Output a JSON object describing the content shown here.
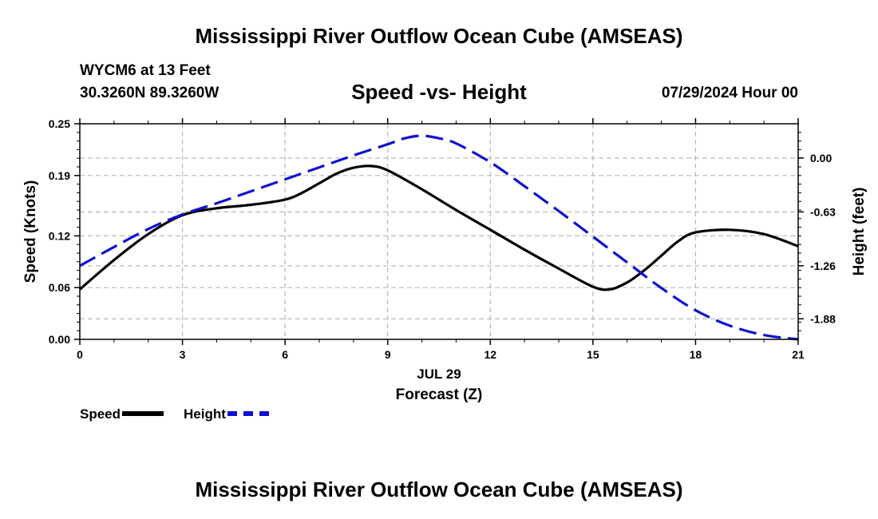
{
  "title_top": "Mississippi River Outflow Ocean Cube (AMSEAS)",
  "title_bottom": "Mississippi River Outflow Ocean Cube (AMSEAS)",
  "station": "WYCM6 at 13 Feet",
  "coords": "30.3260N  89.3260W",
  "subtitle": "Speed -vs- Height",
  "datetime": "07/29/2024 Hour 00",
  "colors": {
    "speed": "#000000",
    "height": "#1010d0",
    "grid": "#b8b8b8"
  },
  "legend": {
    "speed_label": "Speed",
    "height_label": "Height"
  },
  "chart_data": {
    "type": "line",
    "xlabel": "Forecast (Z)",
    "xlabel_date": "JUL 29",
    "ylabel_left": "Speed (Knots)",
    "ylabel_right": "Height (feet)",
    "xlim": [
      0,
      21
    ],
    "ylim_left": [
      0.0,
      0.25
    ],
    "ylim_right": [
      -2.12,
      0.4
    ],
    "x_ticks": [
      0,
      3,
      6,
      9,
      12,
      15,
      18,
      21
    ],
    "x_tick_labels": [
      "0",
      "3",
      "6",
      "9",
      "12",
      "15",
      "18",
      "21"
    ],
    "y_left_ticks": [
      0.0,
      0.06,
      0.12,
      0.19,
      0.25
    ],
    "y_left_tick_labels": [
      "0.00",
      "0.06",
      "0.12",
      "0.19",
      "0.25"
    ],
    "y_right_ticks": [
      0.0,
      -0.63,
      -1.26,
      -1.88
    ],
    "y_right_tick_labels": [
      "0.00",
      "-0.63",
      "-1.26",
      "-1.88"
    ],
    "series": [
      {
        "name": "Speed",
        "axis": "left",
        "style": "solid",
        "x": [
          0,
          1,
          2,
          3,
          4,
          5,
          6,
          6.5,
          7,
          7.5,
          8,
          8.5,
          9,
          10,
          11,
          12,
          13,
          14,
          15,
          15.5,
          16,
          16.5,
          17,
          17.5,
          18,
          19,
          20,
          21
        ],
        "values": [
          0.058,
          0.092,
          0.122,
          0.144,
          0.152,
          0.156,
          0.162,
          0.17,
          0.181,
          0.192,
          0.199,
          0.201,
          0.196,
          0.174,
          0.15,
          0.127,
          0.104,
          0.082,
          0.061,
          0.058,
          0.066,
          0.08,
          0.097,
          0.114,
          0.124,
          0.127,
          0.122,
          0.108
        ]
      },
      {
        "name": "Height",
        "axis": "right",
        "style": "dashed",
        "x": [
          0,
          1,
          2,
          3,
          4,
          5,
          6,
          7,
          8,
          9,
          9.5,
          10,
          10.5,
          11,
          12,
          13,
          14,
          15,
          16,
          17,
          18,
          19,
          20,
          21
        ],
        "values": [
          -1.26,
          -1.04,
          -0.83,
          -0.66,
          -0.53,
          -0.39,
          -0.25,
          -0.11,
          0.03,
          0.16,
          0.23,
          0.26,
          0.23,
          0.17,
          -0.05,
          -0.33,
          -0.62,
          -0.92,
          -1.22,
          -1.52,
          -1.78,
          -1.96,
          -2.07,
          -2.12
        ]
      }
    ]
  }
}
